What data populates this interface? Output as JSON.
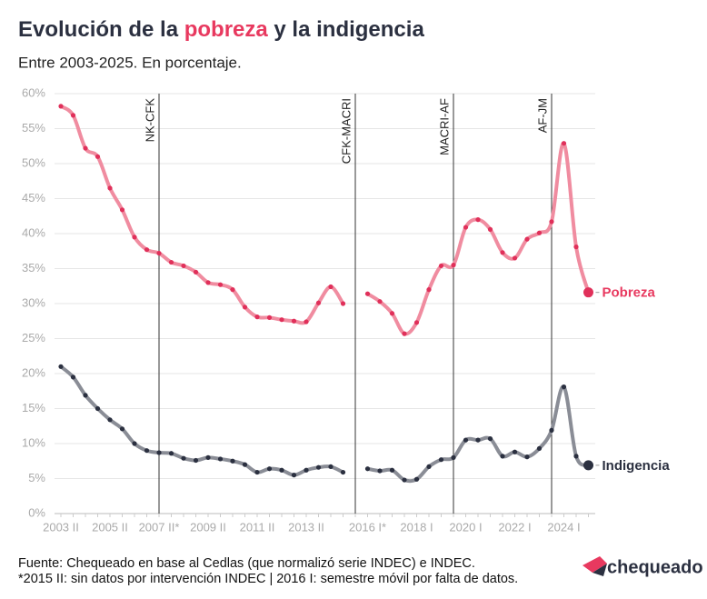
{
  "chart_data": {
    "type": "line",
    "title_parts": [
      {
        "text": "Evolución de la ",
        "color": "#2b3040"
      },
      {
        "text": "pobreza",
        "color": "#e8395f"
      },
      {
        "text": " y la ",
        "color": "#2b3040"
      },
      {
        "text": "indigencia",
        "color": "#2b3040"
      }
    ],
    "subtitle": "Entre 2003-2025. En porcentaje.",
    "categories": [
      "2003 II",
      null,
      null,
      null,
      "2005 II",
      null,
      null,
      null,
      "2007 II*",
      null,
      null,
      null,
      "2009 II",
      null,
      null,
      null,
      "2011 II",
      null,
      null,
      null,
      "2013 II",
      null,
      null,
      null,
      null,
      "2016 I*",
      null,
      null,
      null,
      "2018 I",
      null,
      null,
      null,
      "2020 I",
      null,
      null,
      null,
      "2022 I",
      null,
      null,
      null,
      "2024 I",
      null,
      null
    ],
    "series": [
      {
        "name": "Pobreza",
        "color": "#f08ca0",
        "dot_color": "#e0305a",
        "label_color": "#e8395f",
        "values": [
          58.2,
          56.9,
          52.2,
          51.0,
          46.5,
          43.4,
          39.5,
          37.7,
          37.2,
          35.9,
          35.4,
          34.5,
          33.0,
          32.7,
          32.0,
          29.5,
          28.1,
          28.0,
          27.7,
          27.5,
          27.4,
          30.1,
          32.4,
          30.0,
          null,
          31.4,
          30.3,
          28.6,
          25.7,
          27.3,
          32.0,
          35.4,
          35.5,
          40.9,
          42.0,
          40.6,
          37.3,
          36.5,
          39.2,
          40.1,
          41.7,
          52.9,
          38.1,
          31.6
        ]
      },
      {
        "name": "Indigencia",
        "color": "#8a8d96",
        "dot_color": "#2b3040",
        "label_color": "#2b3040",
        "values": [
          21.0,
          19.5,
          16.9,
          15.0,
          13.4,
          12.1,
          10.0,
          9.0,
          8.7,
          8.6,
          7.9,
          7.6,
          8.0,
          7.8,
          7.5,
          7.0,
          5.9,
          6.4,
          6.2,
          5.5,
          6.2,
          6.6,
          6.7,
          5.9,
          null,
          6.4,
          6.1,
          6.2,
          4.8,
          4.9,
          6.7,
          7.7,
          8.0,
          10.5,
          10.5,
          10.7,
          8.2,
          8.8,
          8.1,
          9.3,
          11.9,
          18.1,
          8.2,
          6.9
        ]
      }
    ],
    "ylim": [
      0,
      60
    ],
    "yticks": [
      {
        "value": 0,
        "label": "0%"
      },
      {
        "value": 5,
        "label": "5%"
      },
      {
        "value": 10,
        "label": "10%"
      },
      {
        "value": 15,
        "label": "15%"
      },
      {
        "value": 20,
        "label": "20%"
      },
      {
        "value": 25,
        "label": "25%"
      },
      {
        "value": 30,
        "label": "30%"
      },
      {
        "value": 35,
        "label": "35%"
      },
      {
        "value": 40,
        "label": "40%"
      },
      {
        "value": 45,
        "label": "45%"
      },
      {
        "value": 50,
        "label": "50%"
      },
      {
        "value": 55,
        "label": "55%"
      },
      {
        "value": 60,
        "label": "60%"
      }
    ],
    "grid": true,
    "vlines": [
      {
        "label": "NK-CFK",
        "index": 8
      },
      {
        "label": "CFK-MACRI",
        "index": 24
      },
      {
        "label": "MACRI-AF",
        "index": 32
      },
      {
        "label": "AF-JM",
        "index": 40
      }
    ],
    "footnotes": [
      "Fuente: Chequeado en base al Cedlas (que normalizó serie INDEC) e INDEC.",
      "*2015 II: sin datos por intervención INDEC | 2016 I: semestre móvil por falta de datos."
    ],
    "logo": "chequeado"
  }
}
